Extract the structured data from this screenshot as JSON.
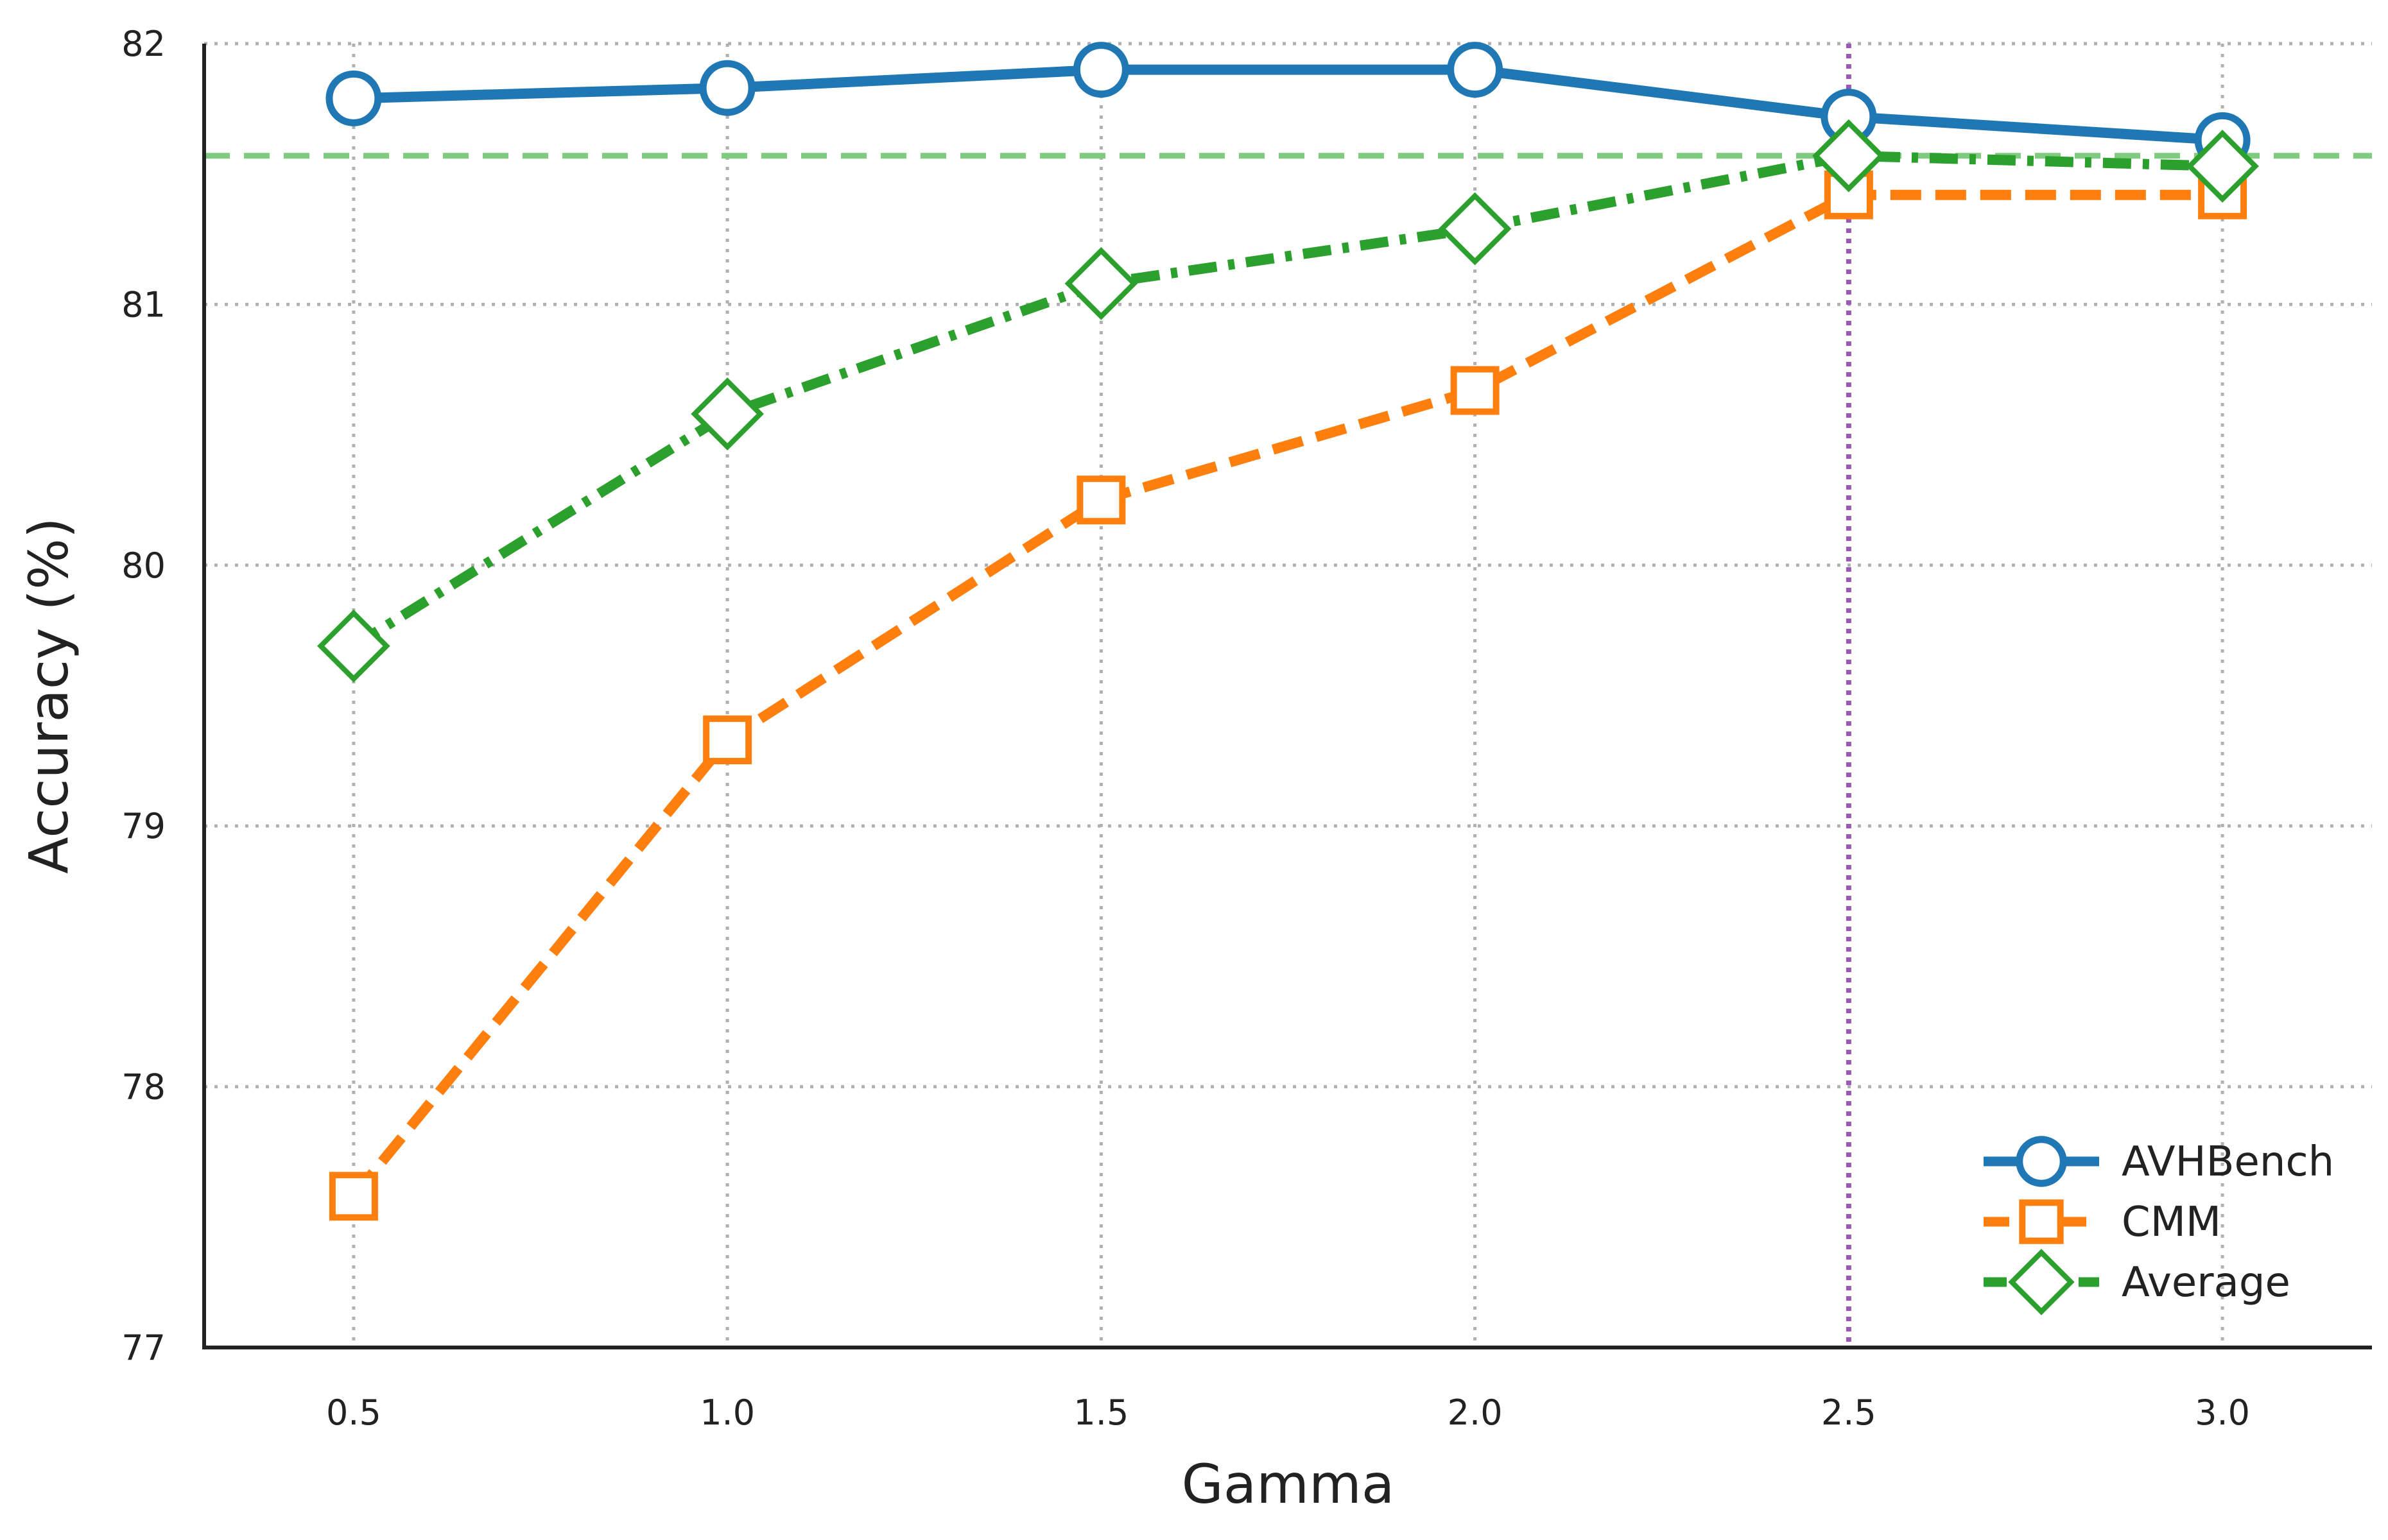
{
  "chart_data": {
    "type": "line",
    "title": "",
    "xlabel": "Gamma",
    "ylabel": "Accuracy (%)",
    "x": [
      0.5,
      1.0,
      1.5,
      2.0,
      2.5,
      3.0
    ],
    "x_tick_labels": [
      "0.5",
      "1.0",
      "1.5",
      "2.0",
      "2.5",
      "3.0"
    ],
    "xlim": [
      0.3,
      3.2
    ],
    "ylim": [
      77,
      82
    ],
    "y_ticks": [
      77,
      78,
      79,
      80,
      81,
      82
    ],
    "y_tick_labels": [
      "77",
      "78",
      "79",
      "80",
      "81",
      "82"
    ],
    "grid": true,
    "legend_placement": "lower-right",
    "series": [
      {
        "name": "AVHBench",
        "values": [
          81.79,
          81.83,
          81.9,
          81.9,
          81.72,
          81.63
        ],
        "color": "#1f77b4",
        "marker": "circle",
        "line_style": "solid"
      },
      {
        "name": "CMM",
        "values": [
          77.58,
          79.33,
          80.25,
          80.67,
          81.42,
          81.42
        ],
        "color": "#ff7f0e",
        "marker": "square",
        "line_style": "dashed"
      },
      {
        "name": "Average",
        "values": [
          79.69,
          80.58,
          81.08,
          81.29,
          81.57,
          81.53
        ],
        "color": "#2ca02c",
        "marker": "diamond",
        "line_style": "dashdot"
      }
    ],
    "reference_lines": [
      {
        "orientation": "horizontal",
        "value": 81.57,
        "color": "#7fcb7f",
        "line_style": "dashed"
      },
      {
        "orientation": "vertical",
        "value": 2.5,
        "color": "#9b59b6",
        "line_style": "dotted"
      }
    ]
  }
}
